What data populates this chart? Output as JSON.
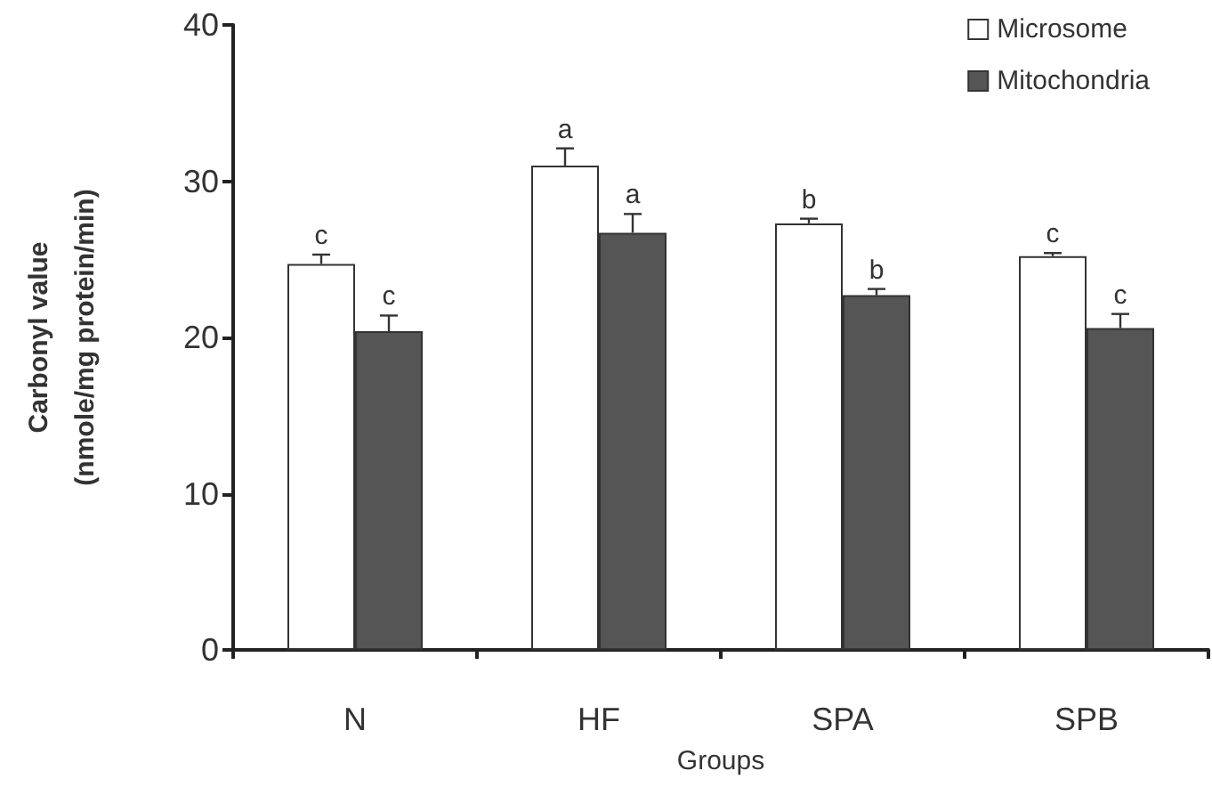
{
  "chart_data": {
    "type": "bar",
    "xlabel": "Groups",
    "ylabel": "Carbonyl value\n(nmole/mg protein/min)",
    "categories": [
      "N",
      "HF",
      "SPA",
      "SPB"
    ],
    "series": [
      {
        "name": "Microsome",
        "color": "#ffffff",
        "values": [
          24.7,
          31.0,
          27.3,
          25.2
        ],
        "errors": [
          [
            24.7,
            25.3
          ],
          [
            31.0,
            32.1
          ],
          [
            27.3,
            27.6
          ],
          [
            25.2,
            25.4
          ]
        ],
        "value_labels": [
          "c",
          "a",
          "b",
          "c"
        ]
      },
      {
        "name": "Mitochondria",
        "color": "#555555",
        "values": [
          20.4,
          26.7,
          22.7,
          20.6
        ],
        "errors": [
          [
            20.4,
            21.4
          ],
          [
            26.7,
            27.9
          ],
          [
            22.7,
            23.1
          ],
          [
            20.6,
            21.5
          ]
        ],
        "value_labels": [
          "c",
          "a",
          "b",
          "c"
        ]
      }
    ],
    "ylim": [
      0,
      40
    ],
    "yticks": [
      0,
      10,
      20,
      30,
      40
    ],
    "grid": false,
    "legend": "top right"
  }
}
